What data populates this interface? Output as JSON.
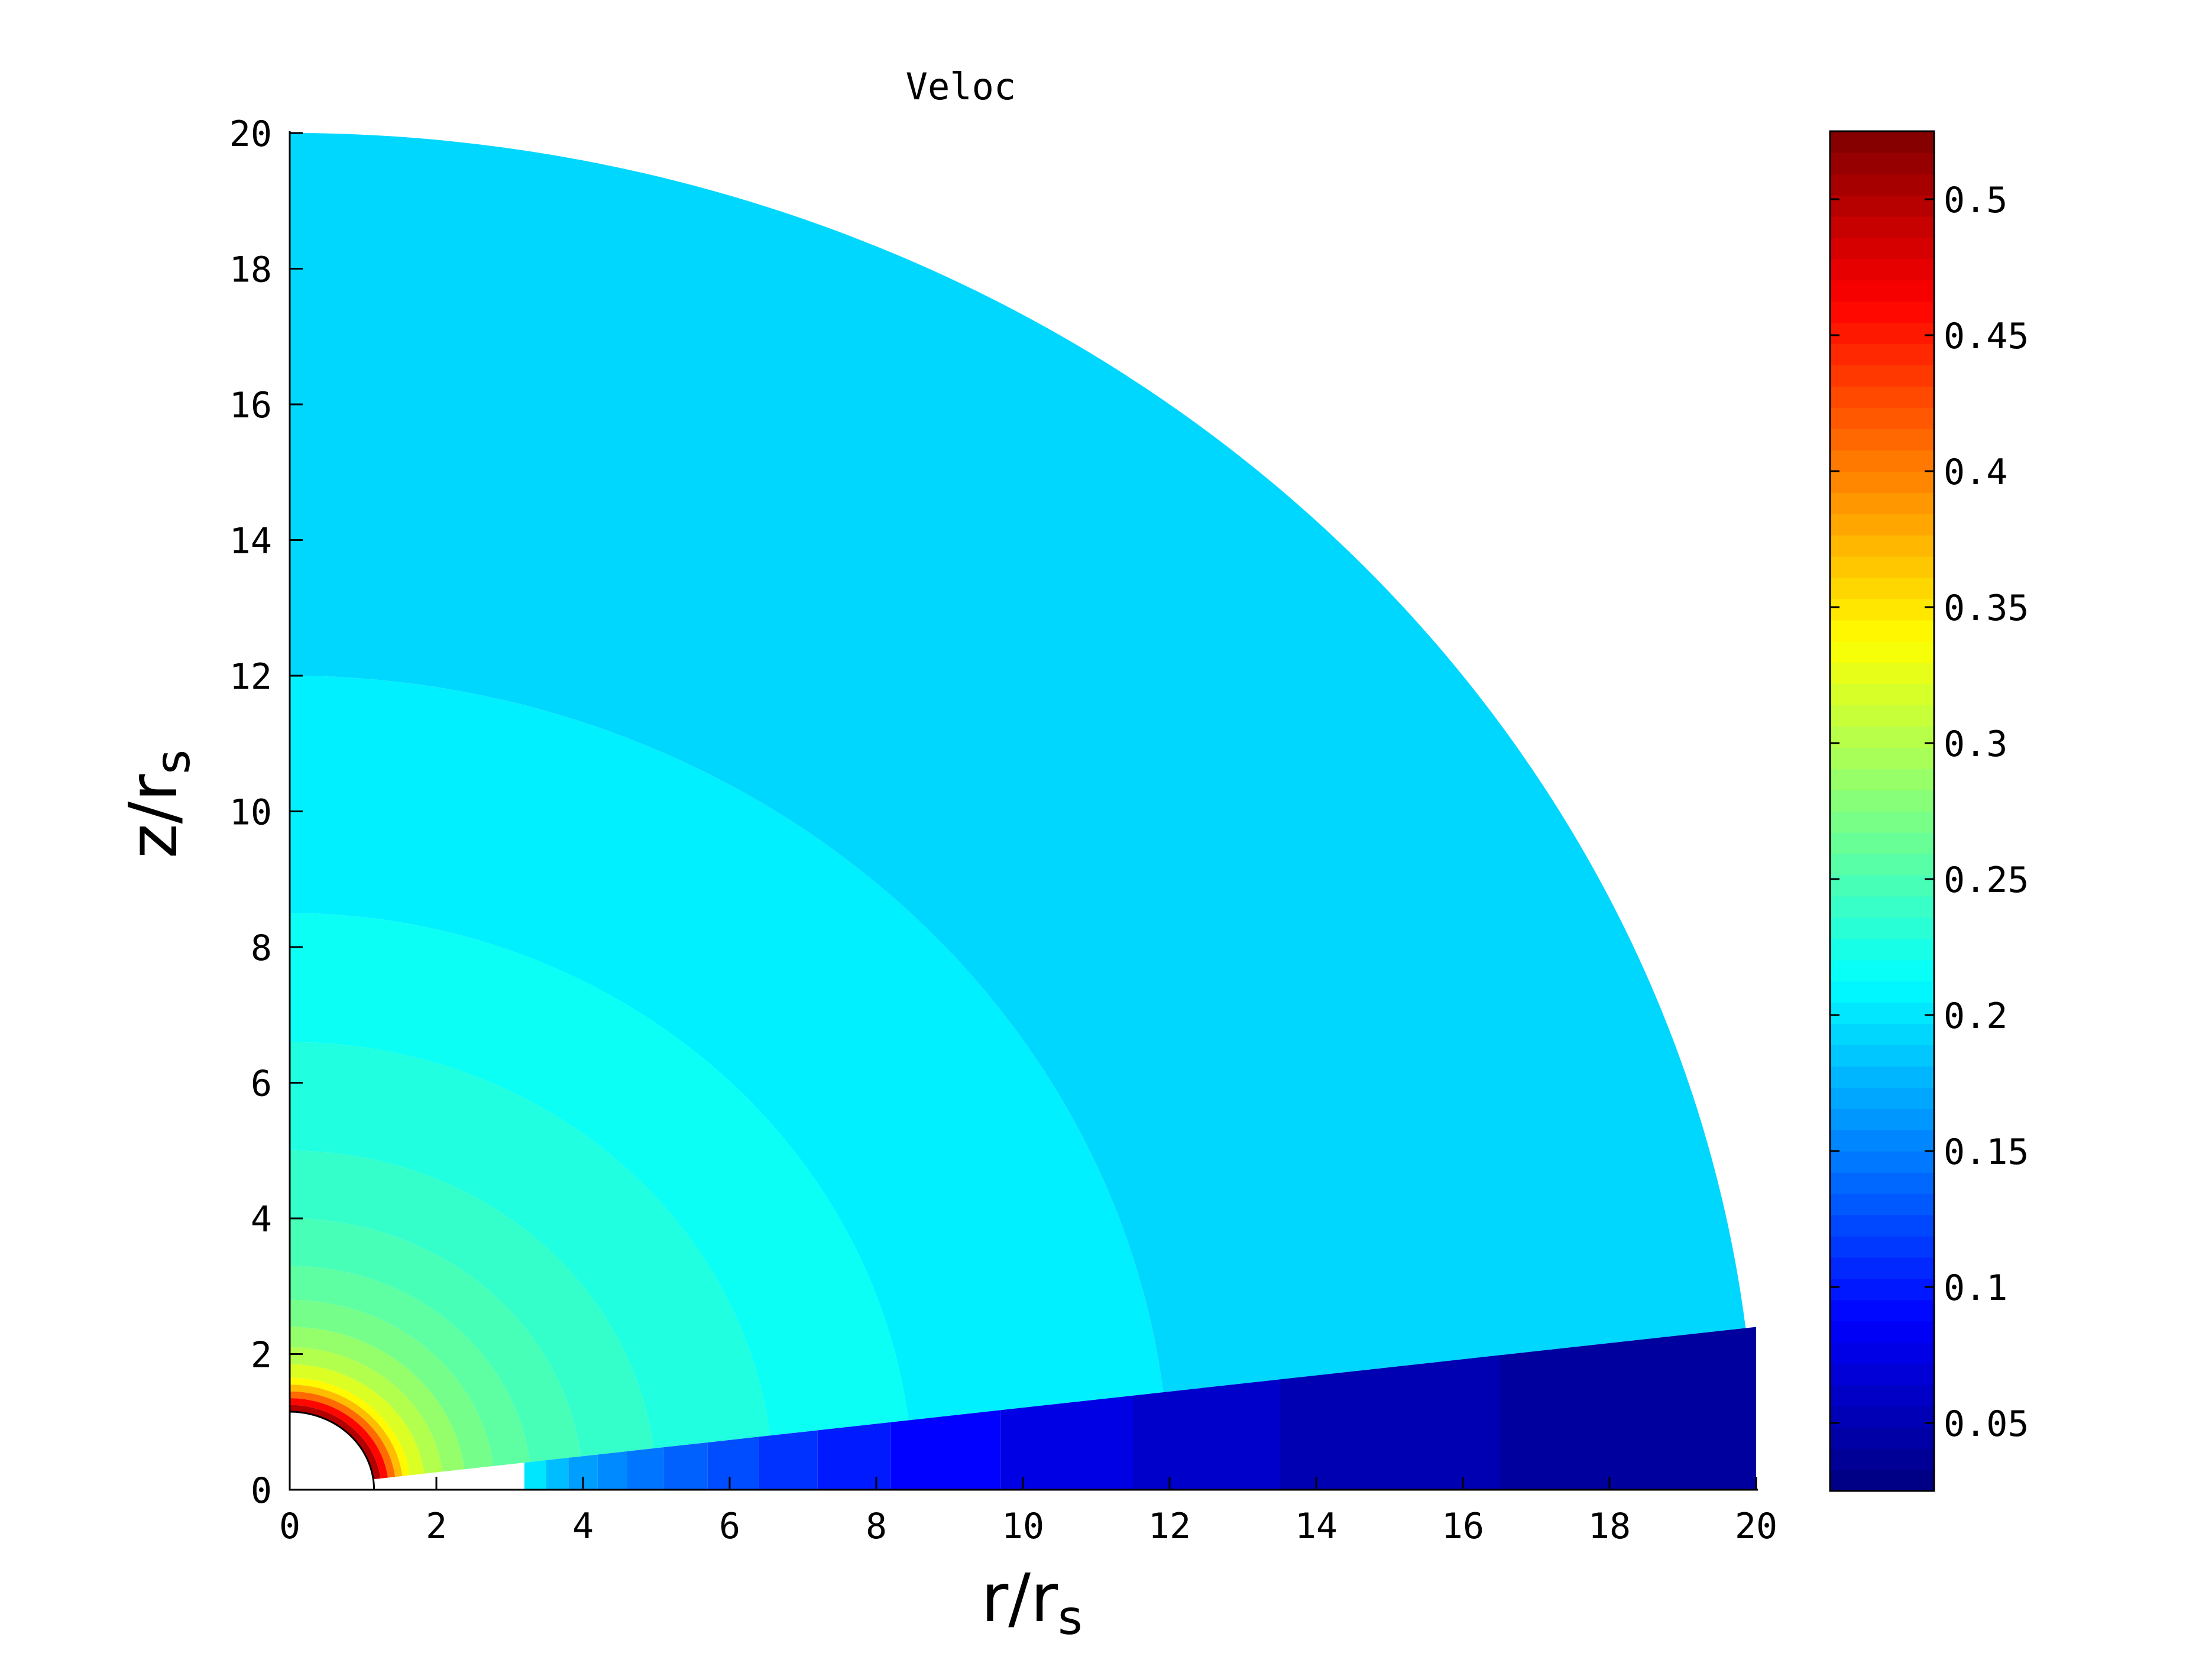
{
  "chart_data": {
    "type": "heatmap",
    "title": "Veloc",
    "xlabel": "r/r",
    "xlabel_sub": "s",
    "ylabel": "z/r",
    "ylabel_sub": "s",
    "xlim": [
      0,
      20
    ],
    "ylim": [
      0,
      20
    ],
    "xticks": [
      "0",
      "2",
      "4",
      "6",
      "8",
      "10",
      "12",
      "14",
      "16",
      "18",
      "20"
    ],
    "yticks": [
      "0",
      "2",
      "4",
      "6",
      "8",
      "10",
      "12",
      "14",
      "16",
      "18",
      "20"
    ],
    "colorbar": {
      "range": [
        0.025,
        0.525
      ],
      "colormap": "jet",
      "ticks": [
        {
          "value": 0.05,
          "label": "0.05"
        },
        {
          "value": 0.1,
          "label": "0.1"
        },
        {
          "value": 0.15,
          "label": "0.15"
        },
        {
          "value": 0.2,
          "label": "0.2"
        },
        {
          "value": 0.25,
          "label": "0.25"
        },
        {
          "value": 0.3,
          "label": "0.3"
        },
        {
          "value": 0.35,
          "label": "0.35"
        },
        {
          "value": 0.4,
          "label": "0.4"
        },
        {
          "value": 0.45,
          "label": "0.45"
        },
        {
          "value": 0.5,
          "label": "0.5"
        }
      ]
    },
    "domain": {
      "inner_radius": 1.15,
      "outer_radius": 20,
      "disk_boundary_x": [
        3.2,
        20
      ],
      "disk_boundary_z": [
        0.4,
        2.4
      ]
    },
    "wind_bands": [
      {
        "r_inner": 1.15,
        "r_outer": 1.25,
        "value": 0.5
      },
      {
        "r_inner": 1.25,
        "r_outer": 1.35,
        "value": 0.46
      },
      {
        "r_inner": 1.35,
        "r_outer": 1.45,
        "value": 0.41
      },
      {
        "r_inner": 1.45,
        "r_outer": 1.55,
        "value": 0.37
      },
      {
        "r_inner": 1.55,
        "r_outer": 1.65,
        "value": 0.34
      },
      {
        "r_inner": 1.65,
        "r_outer": 1.85,
        "value": 0.32
      },
      {
        "r_inner": 1.85,
        "r_outer": 2.1,
        "value": 0.3
      },
      {
        "r_inner": 2.1,
        "r_outer": 2.4,
        "value": 0.285
      },
      {
        "r_inner": 2.4,
        "r_outer": 2.8,
        "value": 0.27
      },
      {
        "r_inner": 2.8,
        "r_outer": 3.3,
        "value": 0.258
      },
      {
        "r_inner": 3.3,
        "r_outer": 4.0,
        "value": 0.248
      },
      {
        "r_inner": 4.0,
        "r_outer": 5.0,
        "value": 0.238
      },
      {
        "r_inner": 5.0,
        "r_outer": 6.6,
        "value": 0.228
      },
      {
        "r_inner": 6.6,
        "r_outer": 8.5,
        "value": 0.218
      },
      {
        "r_inner": 8.5,
        "r_outer": 12.0,
        "value": 0.205
      },
      {
        "r_inner": 12.0,
        "r_outer": 20.0,
        "value": 0.193
      }
    ],
    "disk_cells": [
      {
        "x0": 3.2,
        "x1": 3.5,
        "value": 0.2
      },
      {
        "x0": 3.5,
        "x1": 3.8,
        "value": 0.18
      },
      {
        "x0": 3.8,
        "x1": 4.2,
        "value": 0.165
      },
      {
        "x0": 4.2,
        "x1": 4.6,
        "value": 0.155
      },
      {
        "x0": 4.6,
        "x1": 5.1,
        "value": 0.145
      },
      {
        "x0": 5.1,
        "x1": 5.7,
        "value": 0.135
      },
      {
        "x0": 5.7,
        "x1": 6.4,
        "value": 0.125
      },
      {
        "x0": 6.4,
        "x1": 7.2,
        "value": 0.112
      },
      {
        "x0": 7.2,
        "x1": 8.2,
        "value": 0.1
      },
      {
        "x0": 8.2,
        "x1": 9.7,
        "value": 0.088
      },
      {
        "x0": 9.7,
        "x1": 11.5,
        "value": 0.075
      },
      {
        "x0": 11.5,
        "x1": 13.5,
        "value": 0.062
      },
      {
        "x0": 13.5,
        "x1": 16.5,
        "value": 0.05
      },
      {
        "x0": 16.5,
        "x1": 20.0,
        "value": 0.04
      }
    ]
  }
}
